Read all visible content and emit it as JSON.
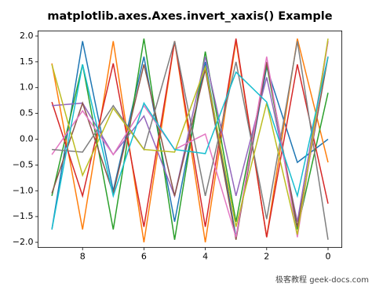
{
  "chart_data": {
    "type": "line",
    "title": "matplotlib.axes.Axes.invert_xaxis() Example",
    "x": [
      0,
      1,
      2,
      3,
      4,
      5,
      6,
      7,
      8,
      9
    ],
    "xlim": [
      9.45,
      -0.45
    ],
    "xticks": [
      0,
      2,
      4,
      6,
      8
    ],
    "ylim": [
      -2.1,
      2.1
    ],
    "yticks": [
      {
        "value": -2.0,
        "label": "−2.0"
      },
      {
        "value": -1.5,
        "label": "−1.5"
      },
      {
        "value": -1.0,
        "label": "−1.0"
      },
      {
        "value": -0.5,
        "label": "−0.5"
      },
      {
        "value": 0.0,
        "label": "0.0"
      },
      {
        "value": 0.5,
        "label": "0.5"
      },
      {
        "value": 1.0,
        "label": "1.0"
      },
      {
        "value": 1.5,
        "label": "1.5"
      },
      {
        "value": 2.0,
        "label": "2.0"
      }
    ],
    "series": [
      {
        "color": "#1f77b4",
        "values": [
          0.0,
          -0.45,
          1.4,
          -1.9,
          1.5,
          -1.6,
          1.6,
          -1.0,
          1.9,
          -1.75
        ]
      },
      {
        "color": "#ff7f0e",
        "values": [
          -0.45,
          1.95,
          -1.9,
          1.9,
          -2.0,
          1.9,
          -2.0,
          1.9,
          -1.75,
          1.47
        ]
      },
      {
        "color": "#2ca02c",
        "values": [
          0.9,
          -1.75,
          1.45,
          -1.6,
          1.7,
          -1.95,
          1.95,
          -1.75,
          1.45,
          -1.1
        ]
      },
      {
        "color": "#d62728",
        "values": [
          -1.25,
          1.45,
          -1.9,
          1.95,
          -1.7,
          1.9,
          -1.7,
          1.47,
          -1.1,
          0.72
        ]
      },
      {
        "color": "#9467bd",
        "values": [
          1.9,
          -1.6,
          1.2,
          -1.1,
          1.6,
          -1.1,
          0.45,
          -0.3,
          0.7,
          0.65
        ]
      },
      {
        "color": "#8c564b",
        "values": [
          1.6,
          -1.7,
          1.5,
          -1.95,
          1.35,
          -1.1,
          1.45,
          -1.05,
          0.7,
          -1.05
        ]
      },
      {
        "color": "#e377c2",
        "values": [
          1.9,
          -1.9,
          1.6,
          -1.9,
          0.1,
          -0.2,
          0.65,
          -0.3,
          0.55,
          -0.3
        ]
      },
      {
        "color": "#7f7f7f",
        "values": [
          -1.95,
          1.9,
          -1.55,
          1.5,
          -1.1,
          1.9,
          -0.2,
          0.65,
          -0.25,
          -0.2
        ]
      },
      {
        "color": "#bcbd22",
        "values": [
          1.95,
          -1.85,
          0.7,
          -1.7,
          1.4,
          -0.25,
          -0.2,
          0.6,
          -0.7,
          1.45
        ]
      },
      {
        "color": "#17becf",
        "values": [
          1.6,
          -1.1,
          0.72,
          1.3,
          -0.28,
          -0.2,
          0.7,
          -1.1,
          1.45,
          -1.75
        ]
      }
    ],
    "watermark": "极客教程 geek-docs.com"
  }
}
